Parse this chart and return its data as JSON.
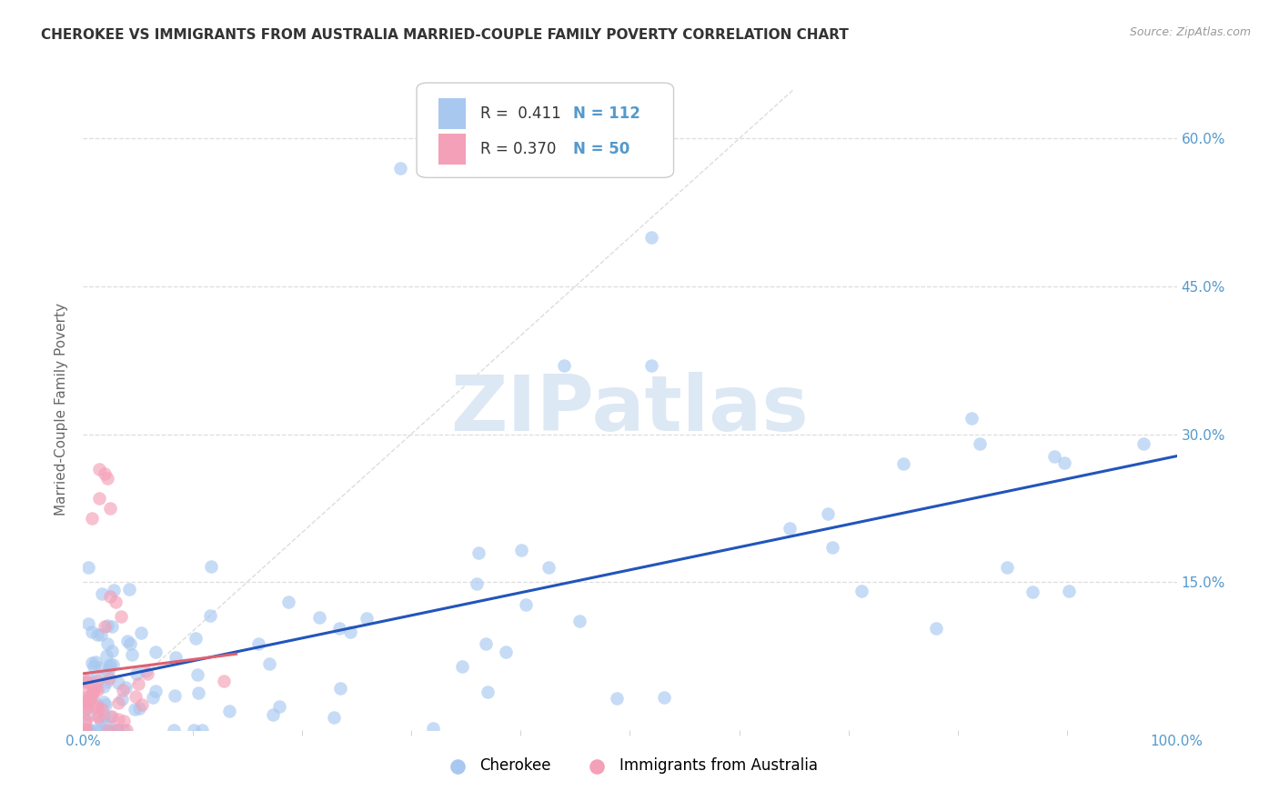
{
  "title": "CHEROKEE VS IMMIGRANTS FROM AUSTRALIA MARRIED-COUPLE FAMILY POVERTY CORRELATION CHART",
  "source_text": "Source: ZipAtlas.com",
  "ylabel": "Married-Couple Family Poverty",
  "xlim": [
    0,
    1.0
  ],
  "ylim": [
    0,
    0.65
  ],
  "xtick_labels": [
    "0.0%",
    "100.0%"
  ],
  "ytick_labels": [
    "15.0%",
    "30.0%",
    "45.0%",
    "60.0%"
  ],
  "ytick_positions": [
    0.15,
    0.3,
    0.45,
    0.6
  ],
  "blue_scatter_color": "#A8C8F0",
  "pink_scatter_color": "#F4A0B8",
  "blue_line_color": "#2255BB",
  "pink_line_color": "#E06070",
  "diag_color": "#DDDDDD",
  "watermark_color": "#DDE8F5",
  "background_color": "#FFFFFF",
  "grid_color": "#DDDDDD",
  "tick_color": "#5599CC",
  "title_color": "#333333",
  "legend_r1": "R =  0.411",
  "legend_n1": "N = 112",
  "legend_r2": "R = 0.370",
  "legend_n2": "N = 50",
  "legend_label1": "Cherokee",
  "legend_label2": "Immigrants from Australia"
}
